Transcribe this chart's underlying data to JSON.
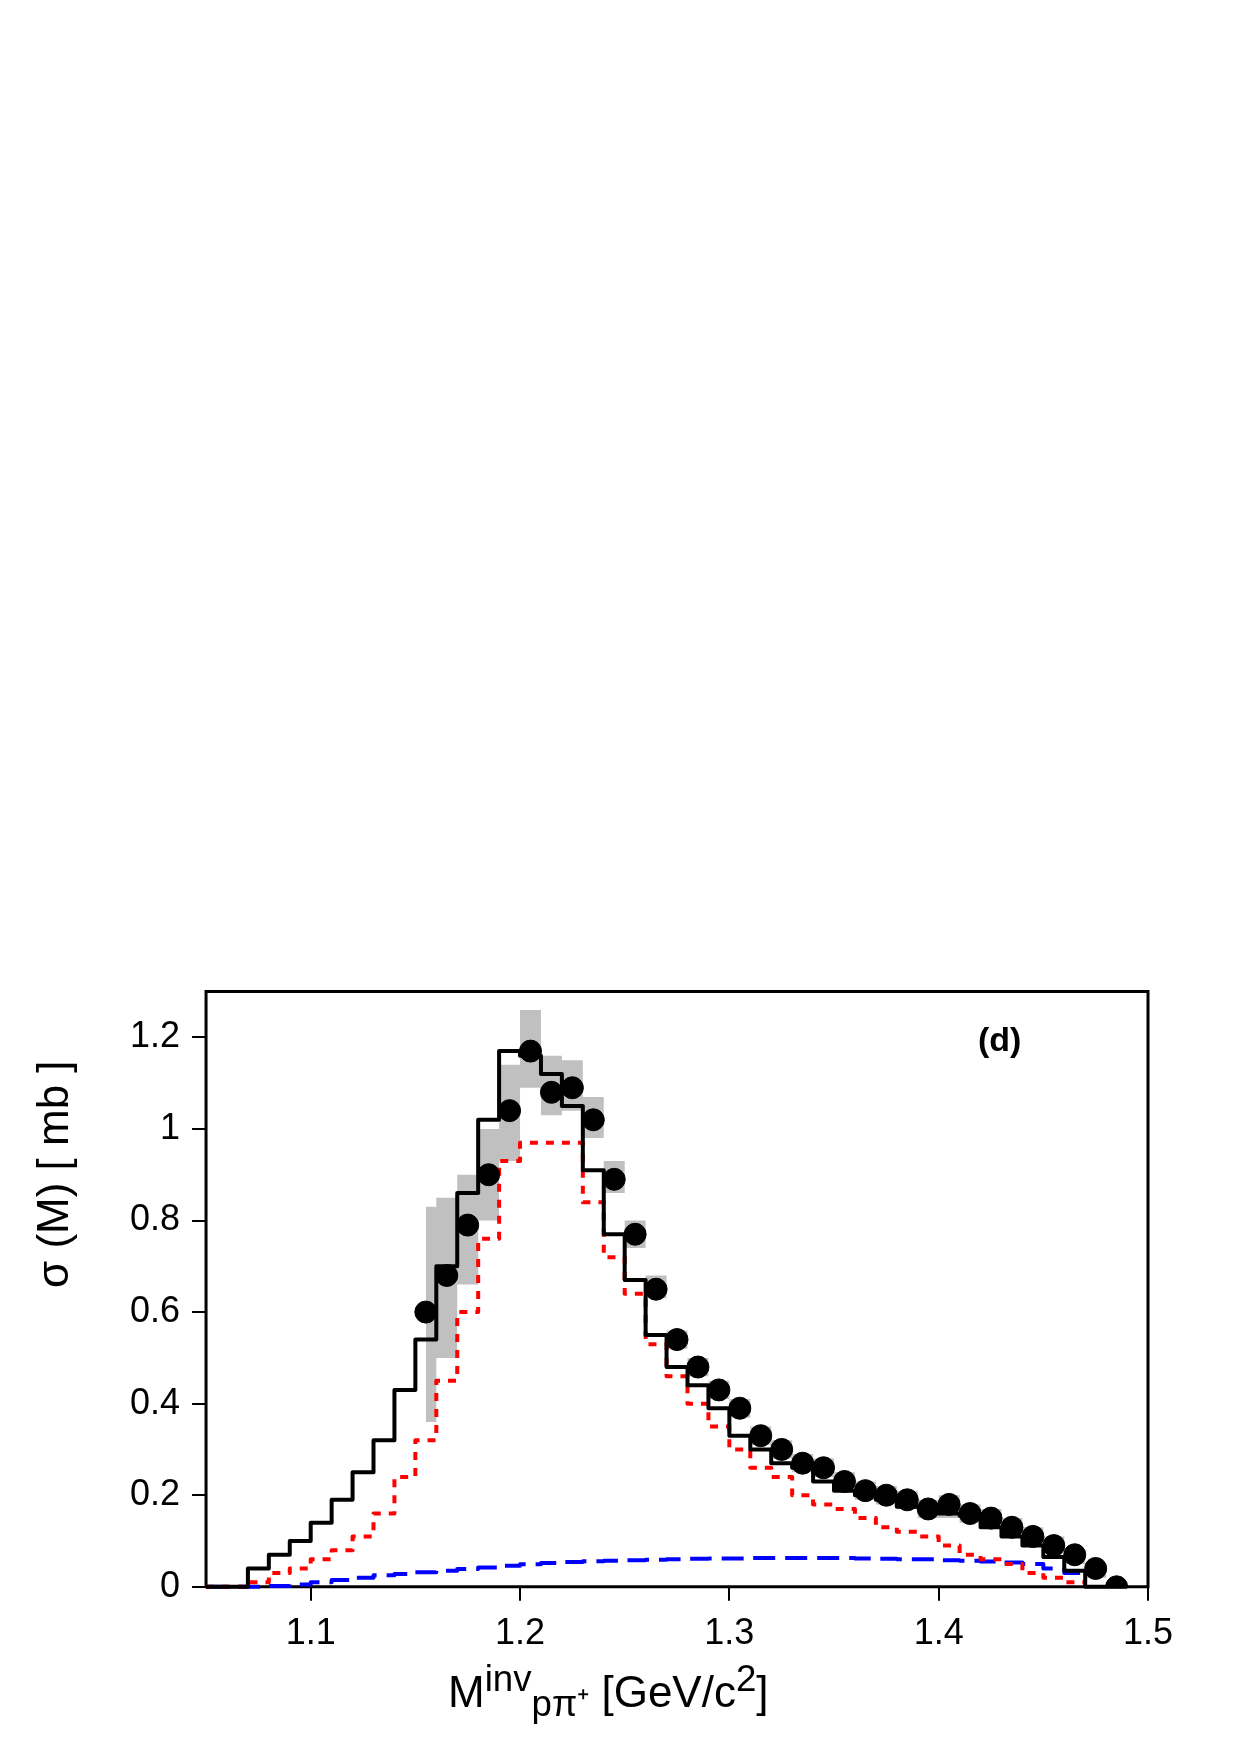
{
  "chart_data": {
    "type": "step",
    "xlabel": "M$^{inv}$$_{pπ⁺}$ [GeV/c$^{2}$]",
    "ylabel": "σ (M) [ mb ]",
    "annotations": [
      "(d)"
    ],
    "xlim": [
      1.05,
      1.5
    ],
    "ylim": [
      0,
      1.3
    ],
    "xticks": [
      1.1,
      1.2,
      1.3,
      1.4,
      1.5
    ],
    "yticks": [
      0,
      0.2,
      0.4,
      0.6,
      0.8,
      1,
      1.2
    ],
    "grid": false,
    "legend": false,
    "series": [
      {
        "color": "#000000",
        "line_style": "solid",
        "x": [
          1.05,
          1.06,
          1.07,
          1.08,
          1.09,
          1.1,
          1.11,
          1.12,
          1.13,
          1.14,
          1.15,
          1.16,
          1.17,
          1.18,
          1.19,
          1.2,
          1.21,
          1.22,
          1.23,
          1.24,
          1.25,
          1.26,
          1.27,
          1.28,
          1.29,
          1.3,
          1.31,
          1.32,
          1.33,
          1.34,
          1.35,
          1.36,
          1.37,
          1.38,
          1.39,
          1.4,
          1.41,
          1.42,
          1.43,
          1.44,
          1.45,
          1.46,
          1.47,
          1.48,
          1.49
        ],
        "values": [
          0,
          0,
          0,
          0.04,
          0.07,
          0.1,
          0.14,
          0.19,
          0.25,
          0.32,
          0.43,
          0.54,
          0.7,
          0.86,
          1.02,
          1.17,
          1.16,
          1.12,
          1.05,
          0.91,
          0.77,
          0.67,
          0.55,
          0.48,
          0.44,
          0.39,
          0.33,
          0.3,
          0.27,
          0.26,
          0.23,
          0.21,
          0.2,
          0.19,
          0.175,
          0.175,
          0.16,
          0.155,
          0.13,
          0.11,
          0.09,
          0.065,
          0.035,
          0,
          0
        ]
      },
      {
        "color": "#ff0000",
        "line_style": "dotted",
        "x": [
          1.05,
          1.06,
          1.07,
          1.08,
          1.09,
          1.1,
          1.11,
          1.12,
          1.13,
          1.14,
          1.15,
          1.16,
          1.17,
          1.18,
          1.19,
          1.2,
          1.21,
          1.22,
          1.23,
          1.24,
          1.25,
          1.26,
          1.27,
          1.28,
          1.29,
          1.3,
          1.31,
          1.32,
          1.33,
          1.34,
          1.35,
          1.36,
          1.37,
          1.38,
          1.39,
          1.4,
          1.41,
          1.42,
          1.43,
          1.44,
          1.45,
          1.46,
          1.47
        ],
        "values": [
          0,
          0,
          0,
          0.01,
          0.03,
          0.04,
          0.06,
          0.08,
          0.11,
          0.16,
          0.24,
          0.32,
          0.45,
          0.6,
          0.76,
          0.93,
          0.97,
          0.97,
          0.97,
          0.84,
          0.72,
          0.64,
          0.53,
          0.46,
          0.4,
          0.35,
          0.3,
          0.26,
          0.24,
          0.2,
          0.18,
          0.17,
          0.15,
          0.13,
          0.12,
          0.11,
          0.09,
          0.07,
          0.06,
          0.05,
          0.03,
          0.02,
          0.01
        ]
      },
      {
        "color": "#0000ff",
        "line_style": "dashed",
        "x": [
          1.05,
          1.06,
          1.07,
          1.08,
          1.09,
          1.1,
          1.11,
          1.12,
          1.13,
          1.14,
          1.15,
          1.16,
          1.17,
          1.18,
          1.19,
          1.2,
          1.21,
          1.22,
          1.23,
          1.24,
          1.25,
          1.26,
          1.27,
          1.28,
          1.29,
          1.3,
          1.31,
          1.32,
          1.33,
          1.34,
          1.35,
          1.36,
          1.37,
          1.38,
          1.39,
          1.4,
          1.41,
          1.42,
          1.43,
          1.44,
          1.45,
          1.46,
          1.47
        ],
        "values": [
          0,
          0,
          0,
          0,
          0.002,
          0.005,
          0.01,
          0.015,
          0.02,
          0.025,
          0.028,
          0.032,
          0.035,
          0.039,
          0.042,
          0.046,
          0.049,
          0.052,
          0.054,
          0.056,
          0.057,
          0.058,
          0.059,
          0.06,
          0.061,
          0.062,
          0.062,
          0.063,
          0.063,
          0.063,
          0.063,
          0.063,
          0.062,
          0.061,
          0.06,
          0.06,
          0.058,
          0.057,
          0.055,
          0.053,
          0.05,
          0.04,
          0.03
        ]
      },
      {
        "type": "scatter",
        "color": "#000000",
        "marker": "circle",
        "x": [
          1.155,
          1.165,
          1.175,
          1.185,
          1.195,
          1.205,
          1.215,
          1.225,
          1.235,
          1.245,
          1.255,
          1.265,
          1.275,
          1.285,
          1.295,
          1.305,
          1.315,
          1.325,
          1.335,
          1.345,
          1.355,
          1.365,
          1.375,
          1.385,
          1.395,
          1.405,
          1.415,
          1.425,
          1.435,
          1.445,
          1.455,
          1.465,
          1.475,
          1.485
        ],
        "values": [
          0.6,
          0.68,
          0.79,
          0.9,
          1.04,
          1.17,
          1.08,
          1.09,
          1.02,
          0.89,
          0.77,
          0.65,
          0.54,
          0.48,
          0.43,
          0.39,
          0.33,
          0.3,
          0.27,
          0.26,
          0.23,
          0.21,
          0.2,
          0.19,
          0.17,
          0.18,
          0.16,
          0.15,
          0.13,
          0.11,
          0.09,
          0.07,
          0.04,
          0
        ],
        "lower": [
          0.36,
          0.5,
          0.66,
          0.8,
          0.93,
          1.09,
          1.03,
          1.04,
          0.98,
          0.86,
          0.74,
          0.63,
          0.52,
          0.46,
          0.41,
          0.37,
          0.31,
          0.28,
          0.25,
          0.24,
          0.21,
          0.19,
          0.18,
          0.17,
          0.15,
          0.15,
          0.14,
          0.13,
          0.11,
          0.09,
          0.08,
          0.05,
          0.02,
          0
        ],
        "upper": [
          0.83,
          0.85,
          0.9,
          1,
          1.14,
          1.26,
          1.16,
          1.15,
          1.07,
          0.93,
          0.8,
          0.68,
          0.56,
          0.5,
          0.45,
          0.41,
          0.35,
          0.32,
          0.29,
          0.28,
          0.25,
          0.23,
          0.22,
          0.21,
          0.19,
          0.2,
          0.18,
          0.17,
          0.15,
          0.13,
          0.11,
          0.08,
          0.05,
          0.01
        ]
      }
    ]
  }
}
